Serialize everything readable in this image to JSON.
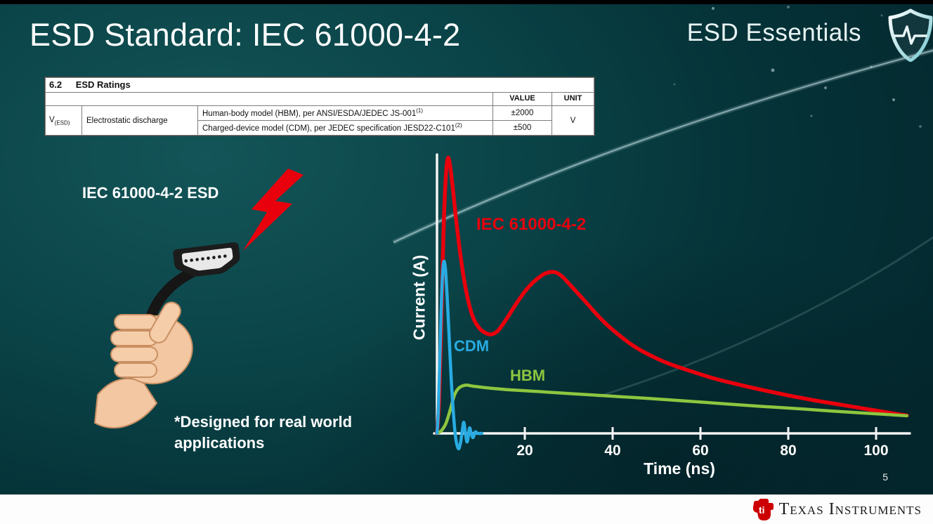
{
  "slide": {
    "title": "ESD Standard: IEC 61000-4-2",
    "brand": "ESD Essentials",
    "page_number": "5",
    "footer_brand": "Texas Instruments"
  },
  "ratings_table": {
    "section_no": "6.2",
    "section_title": "ESD Ratings",
    "value_header": "VALUE",
    "unit_header": "UNIT",
    "symbol_main": "V",
    "symbol_sub": "(ESD)",
    "parameter": "Electrostatic discharge",
    "rows": [
      {
        "desc": "Human-body model (HBM), per ANSI/ESDA/JEDEC JS-001",
        "sup": "(1)",
        "value": "±2000"
      },
      {
        "desc": "Charged-device model (CDM), per JEDEC specification JESD22-C101",
        "sup": "(2)",
        "value": "±500"
      }
    ],
    "unit": "V"
  },
  "illustration": {
    "caption": "IEC 61000-4-2 ESD",
    "note": "*Designed for real world\napplications"
  },
  "colors": {
    "iec_red": "#e8000d",
    "cdm_blue": "#29abe2",
    "hbm_green": "#8dc63f",
    "background_teal": "#0a4347",
    "axis_white": "#f4f4f4"
  },
  "chart_data": {
    "type": "line",
    "title": "",
    "xlabel": "Time (ns)",
    "ylabel": "Current (A)",
    "xlim": [
      0,
      110
    ],
    "ylim": [
      -0.08,
      1.05
    ],
    "y_units": "normalized (no y tick labels shown)",
    "xticks": [
      20,
      40,
      60,
      80,
      100
    ],
    "grid": false,
    "legend": "inline colored labels",
    "series": [
      {
        "name": "IEC 61000-4-2",
        "color": "#e8000d",
        "x": [
          0,
          0.5,
          1,
          1.5,
          2,
          2.5,
          3,
          3.6,
          4.4,
          5.4,
          6.6,
          8,
          9.5,
          11,
          12.5,
          14,
          16,
          18,
          20,
          22,
          24,
          25.5,
          27,
          28.5,
          30,
          32,
          34,
          36.5,
          39,
          42,
          45,
          49,
          53,
          58,
          63,
          68,
          74,
          80,
          86,
          92,
          98,
          103,
          107
        ],
        "y": [
          0,
          0.12,
          0.42,
          0.74,
          0.93,
          1.0,
          0.97,
          0.89,
          0.77,
          0.64,
          0.52,
          0.43,
          0.385,
          0.365,
          0.36,
          0.375,
          0.42,
          0.47,
          0.515,
          0.55,
          0.575,
          0.585,
          0.585,
          0.57,
          0.545,
          0.51,
          0.475,
          0.43,
          0.39,
          0.35,
          0.315,
          0.28,
          0.252,
          0.225,
          0.2,
          0.18,
          0.158,
          0.138,
          0.12,
          0.104,
          0.088,
          0.075,
          0.065
        ]
      },
      {
        "name": "CDM",
        "color": "#29abe2",
        "x": [
          0,
          0.3,
          0.7,
          1.1,
          1.5,
          1.9,
          2.3,
          2.8,
          3.3,
          3.8,
          4.2,
          4.6,
          5.0,
          5.4,
          5.8,
          6.1,
          6.4,
          6.8,
          7.1,
          7.4,
          7.8,
          8.2,
          8.7,
          9.3,
          10.2
        ],
        "y": [
          0,
          0.08,
          0.3,
          0.52,
          0.62,
          0.6,
          0.5,
          0.34,
          0.18,
          0.06,
          -0.01,
          -0.045,
          -0.055,
          -0.03,
          0.015,
          0.04,
          0.01,
          -0.03,
          -0.015,
          0.02,
          0.0,
          -0.015,
          0.005,
          0.0,
          0.0
        ]
      },
      {
        "name": "HBM",
        "color": "#8dc63f",
        "x": [
          0,
          1,
          2,
          3,
          4,
          5,
          6.5,
          8,
          10,
          13,
          16,
          20,
          25,
          30,
          36,
          42,
          50,
          58,
          66,
          74,
          82,
          90,
          97,
          103,
          107
        ],
        "y": [
          0,
          0.01,
          0.035,
          0.085,
          0.14,
          0.165,
          0.175,
          0.172,
          0.168,
          0.163,
          0.159,
          0.155,
          0.15,
          0.145,
          0.139,
          0.133,
          0.125,
          0.116,
          0.107,
          0.098,
          0.09,
          0.081,
          0.074,
          0.068,
          0.064
        ]
      }
    ]
  }
}
